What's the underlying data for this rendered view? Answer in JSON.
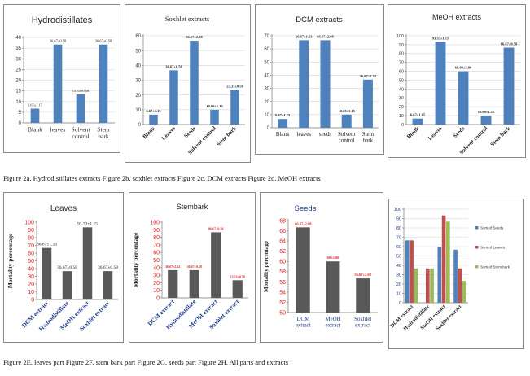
{
  "captions": {
    "top": "Figure 2a. Hydrodistillates extracts Figure 2b. soxhlet extracts Figure 2c. DCM extracts Figure 2d. MeOH extracts",
    "bottom": "Figure 2E. leaves part Figure 2F. stem bark part Figure 2G. seeds part Figure 2H. All parts and extracts"
  },
  "colors": {
    "blue": "#4f81bd",
    "gray": "#595959",
    "red": "#c0504d",
    "green": "#9bbb59",
    "label_red": "#e31a1c",
    "label_navy": "#1f3c88"
  },
  "chart_data": [
    {
      "id": "hydro",
      "type": "bar",
      "title": "Hydrodistillates",
      "categories": [
        "Blank",
        "leaves",
        "Solvent control",
        "Stem bark"
      ],
      "values": [
        6.67,
        36.67,
        13.33,
        36.67
      ],
      "data_labels": [
        "6.67±1.15",
        "36.67±0.58",
        "13.33±0.58",
        "36.67±0.58"
      ],
      "ylim": [
        0,
        40
      ],
      "yticks": [
        0,
        5,
        10,
        15,
        20,
        25,
        30,
        35,
        40
      ],
      "grid": true
    },
    {
      "id": "soxhlet",
      "type": "bar",
      "title": "Soxhlet extracts",
      "categories": [
        "Blank",
        "Leaves",
        "Seeds",
        "Solvent control",
        "Stem bark"
      ],
      "values": [
        6.67,
        36.67,
        56.67,
        10.0,
        23.33
      ],
      "data_labels": [
        "6.67±1.15",
        "36.67±0.58",
        "56.67±2.08",
        "10.00±1.15",
        "23.33±0.58"
      ],
      "ylim": [
        0,
        60
      ],
      "yticks": [
        0,
        10,
        20,
        30,
        40,
        50,
        60
      ],
      "grid": true
    },
    {
      "id": "dcm",
      "type": "bar",
      "title": "DCM extracts",
      "categories": [
        "Blank",
        "leaves",
        "seeds",
        "Solvent control",
        "Stem bark"
      ],
      "values": [
        6.67,
        66.67,
        66.67,
        10.0,
        36.67
      ],
      "data_labels": [
        "6.67±1.15",
        "66.67±1.53",
        "66.67±2.08",
        "10.00±1.15",
        "36.67±2.52"
      ],
      "ylim": [
        0,
        70
      ],
      "yticks": [
        0,
        10,
        20,
        30,
        40,
        50,
        60,
        70
      ],
      "grid": true
    },
    {
      "id": "meoh",
      "type": "bar",
      "title": "MeOH extracts",
      "categories": [
        "Blank",
        "Leaves",
        "Seeds",
        "Solvent control",
        "Stem bark"
      ],
      "values": [
        6.67,
        93.33,
        60.0,
        10.0,
        86.67
      ],
      "data_labels": [
        "6.67±1.15",
        "93.33±1.15",
        "60.00±2.00",
        "10.00±1.15",
        "86.67±0.58"
      ],
      "ylim": [
        0,
        100
      ],
      "yticks": [
        0,
        10,
        20,
        30,
        40,
        50,
        60,
        70,
        80,
        90,
        100
      ],
      "grid": true
    },
    {
      "id": "leaves",
      "type": "bar",
      "title": "Leaves",
      "ylabel": "Mortality percentage",
      "categories": [
        "DCM extract",
        "Hydrodistillate",
        "MeOH extract",
        "Soxhlet extract"
      ],
      "values": [
        66.67,
        36.67,
        93.33,
        36.67
      ],
      "data_labels": [
        "66.67±1.53",
        "36.67±0.58",
        "93.33±1.15",
        "36.67±0.58"
      ],
      "ylim": [
        0,
        100
      ],
      "yticks": [
        0,
        10,
        20,
        30,
        40,
        50,
        60,
        70,
        80,
        90,
        100
      ],
      "grid": false
    },
    {
      "id": "stembark",
      "type": "bar",
      "title": "Stembark",
      "ylabel": "Mortality percentage",
      "categories": [
        "DCM extract",
        "Hydrodistillate",
        "MeOH extract",
        "Soxhlet extract"
      ],
      "values": [
        36.67,
        36.67,
        86.67,
        23.33
      ],
      "data_labels": [
        "36.67±2.52",
        "36.67±0.58",
        "86.67±0.58",
        "23.33±0.58"
      ],
      "ylim": [
        0,
        100
      ],
      "yticks": [
        0,
        10,
        20,
        30,
        40,
        50,
        60,
        70,
        80,
        90,
        100
      ],
      "grid": false
    },
    {
      "id": "seeds",
      "type": "bar",
      "title": "Seeds",
      "ylabel": "Mortality percentage",
      "categories": [
        "DCM extract",
        "MeOH extract",
        "Soxhlet extract"
      ],
      "values": [
        66.67,
        60.0,
        56.67
      ],
      "data_labels": [
        "66.67±2.08",
        "60±2.00",
        "56.67±2.08"
      ],
      "ylim": [
        50,
        68
      ],
      "yticks": [
        50,
        52,
        54,
        56,
        58,
        60,
        62,
        64,
        66,
        68
      ],
      "grid": false
    },
    {
      "id": "all",
      "type": "bar",
      "title": "",
      "categories": [
        "DCM extract",
        "Hydrodistillate",
        "MeOH extract",
        "Soxhlet extract"
      ],
      "series": [
        {
          "name": "Sum of Seeds",
          "values": [
            66.67,
            0,
            60.0,
            56.67
          ],
          "color": "#4f81bd"
        },
        {
          "name": "Sum of Leaves",
          "values": [
            66.67,
            36.67,
            93.33,
            36.67
          ],
          "color": "#c0504d"
        },
        {
          "name": "Sum of Stem bark",
          "values": [
            36.67,
            36.67,
            86.67,
            23.33
          ],
          "color": "#9bbb59"
        }
      ],
      "ylim": [
        0,
        100
      ],
      "yticks": [
        0,
        10,
        20,
        30,
        40,
        50,
        60,
        70,
        80,
        90,
        100
      ],
      "legend": "right",
      "grid": true
    }
  ]
}
